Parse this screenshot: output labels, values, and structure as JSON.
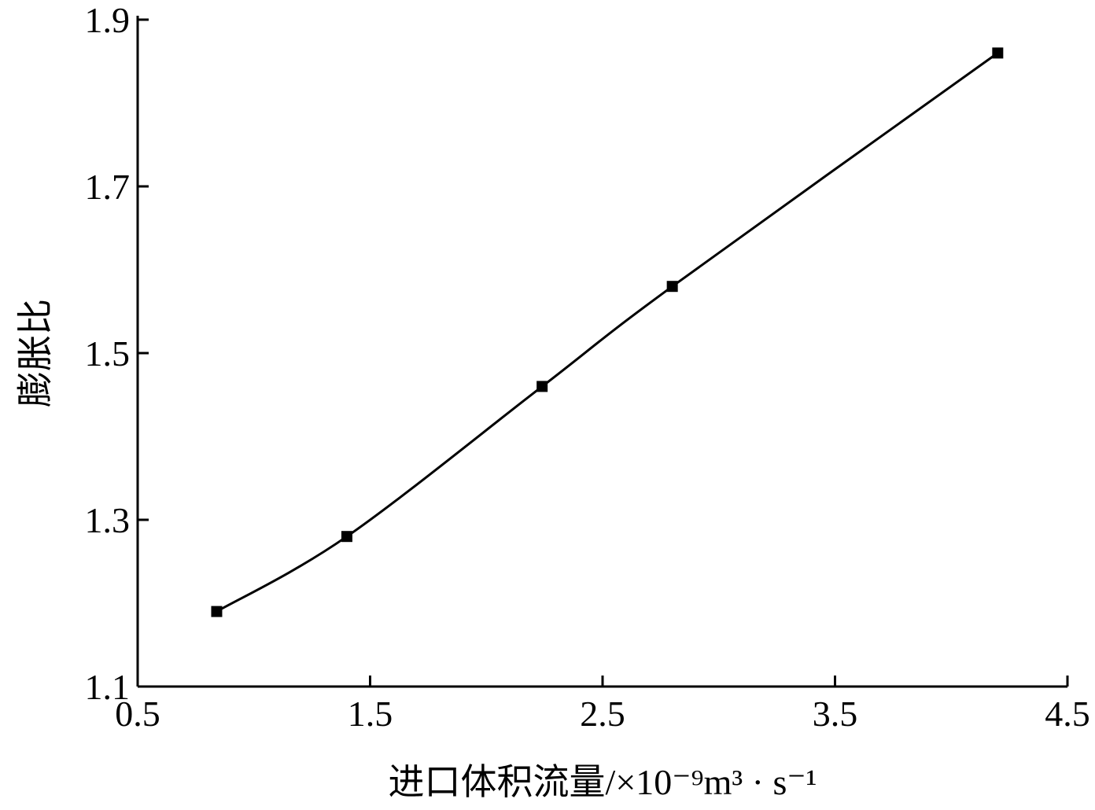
{
  "chart_data": {
    "type": "line",
    "xlabel": "进口体积流量/×10⁻⁹m³ · s⁻¹",
    "ylabel": "膨胀比",
    "x": [
      0.84,
      1.4,
      2.24,
      2.8,
      4.2
    ],
    "series": [
      {
        "color": "#000000",
        "values": [
          1.19,
          1.28,
          1.46,
          1.58,
          1.86
        ]
      }
    ],
    "xlim": [
      0.5,
      4.5
    ],
    "xticks": [
      0.5,
      1.5,
      2.5,
      3.5,
      4.5
    ],
    "ylim": [
      1.1,
      1.9
    ],
    "yticks": [
      1.1,
      1.3,
      1.5,
      1.7,
      1.9
    ]
  }
}
